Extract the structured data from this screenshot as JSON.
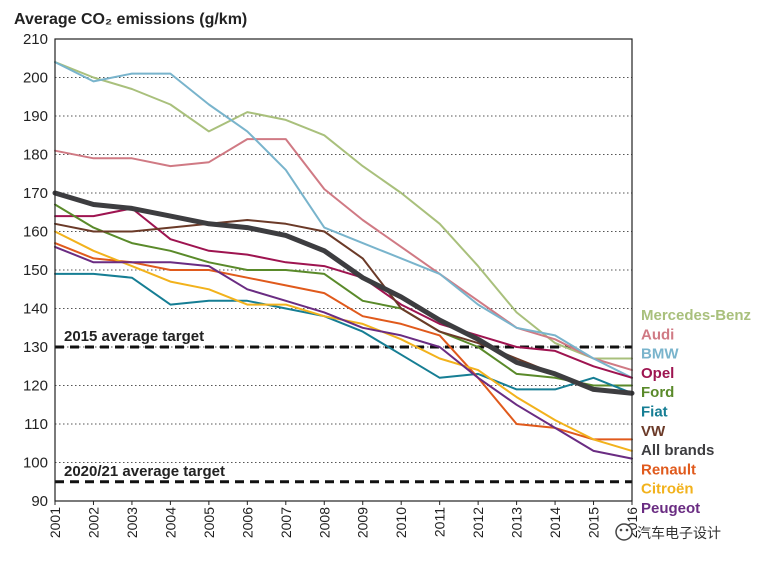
{
  "watermark": {
    "text": "汽车电子设计",
    "icon": "wechat-icon"
  },
  "chart_data": {
    "type": "line",
    "title": "Average CO₂ emissions (g/km)",
    "ylim": [
      90,
      210
    ],
    "yticks": [
      90,
      100,
      110,
      120,
      130,
      140,
      150,
      160,
      170,
      180,
      190,
      200,
      210
    ],
    "grid": "horizontal dotted",
    "legend_position": "right",
    "categories": [
      "2001",
      "2002",
      "2003",
      "2004",
      "2005",
      "2006",
      "2007",
      "2008",
      "2009",
      "2010",
      "2011",
      "2012",
      "2013",
      "2014",
      "2015",
      "2016"
    ],
    "targets": [
      {
        "label": "2015 average target",
        "value": 130
      },
      {
        "label": "2020/21 average target",
        "value": 95
      }
    ],
    "series": [
      {
        "name": "Mercedes-Benz",
        "color": "#a9c07c",
        "values": [
          204,
          200,
          197,
          193,
          186,
          191,
          189,
          185,
          177,
          170,
          162,
          151,
          139,
          131,
          127,
          127
        ]
      },
      {
        "name": "Audi",
        "color": "#d07a84",
        "values": [
          181,
          179,
          179,
          177,
          178,
          184,
          184,
          171,
          163,
          156,
          149,
          142,
          135,
          132,
          127,
          124
        ]
      },
      {
        "name": "BMW",
        "color": "#79b4cc",
        "values": [
          204,
          199,
          201,
          201,
          193,
          186,
          176,
          161,
          157,
          153,
          149,
          141,
          135,
          133,
          127,
          122
        ]
      },
      {
        "name": "Opel",
        "color": "#9e1450",
        "values": [
          164,
          164,
          166,
          158,
          155,
          154,
          152,
          151,
          148,
          141,
          136,
          133,
          130,
          129,
          125,
          122
        ]
      },
      {
        "name": "Ford",
        "color": "#5a8a2a",
        "values": [
          167,
          161,
          157,
          155,
          152,
          150,
          150,
          149,
          142,
          140,
          134,
          130,
          123,
          122,
          120,
          120
        ]
      },
      {
        "name": "Fiat",
        "color": "#167e94",
        "values": [
          149,
          149,
          148,
          141,
          142,
          142,
          140,
          138,
          134,
          128,
          122,
          123,
          119,
          119,
          122,
          118
        ]
      },
      {
        "name": "VW",
        "color": "#6b3a28",
        "values": [
          162,
          160,
          160,
          161,
          162,
          163,
          162,
          160,
          153,
          140,
          134,
          131,
          127,
          123,
          119,
          118
        ]
      },
      {
        "name": "All brands",
        "color": "#3d3d40",
        "values": [
          170,
          167,
          166,
          164,
          162,
          161,
          159,
          155,
          148,
          143,
          137,
          132,
          126,
          123,
          119,
          118
        ]
      },
      {
        "name": "Renault",
        "color": "#e05a1c",
        "values": [
          157,
          153,
          152,
          150,
          150,
          148,
          146,
          144,
          138,
          136,
          133,
          122,
          110,
          109,
          106,
          106
        ]
      },
      {
        "name": "Citroën",
        "color": "#f2b21c",
        "values": [
          160,
          155,
          151,
          147,
          145,
          141,
          141,
          138,
          136,
          132,
          127,
          124,
          117,
          111,
          106,
          103
        ]
      },
      {
        "name": "Peugeot",
        "color": "#6a2c82",
        "values": [
          156,
          152,
          152,
          152,
          151,
          145,
          142,
          139,
          135,
          133,
          130,
          122,
          115,
          109,
          103,
          101
        ]
      }
    ]
  }
}
